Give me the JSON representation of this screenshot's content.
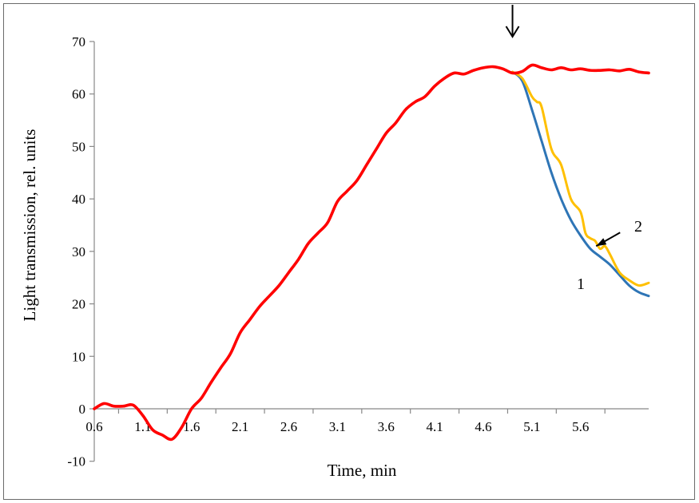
{
  "chart_data": {
    "type": "line",
    "title": "",
    "xlabel": "Time, min",
    "ylabel": "Light transmission, rel. units",
    "xlim": [
      0.6,
      6.3
    ],
    "ylim": [
      -10,
      70
    ],
    "x_tick_labels": [
      "0.6",
      "1.1",
      "1.6",
      "2.1",
      "2.6",
      "3.1",
      "3.6",
      "4.1",
      "4.6",
      "5.1",
      "5.6"
    ],
    "y_tick_labels": [
      "70",
      "60",
      "50",
      "40",
      "30",
      "20",
      "10",
      "0",
      "-10"
    ],
    "y_ticks": [
      70,
      60,
      50,
      40,
      30,
      20,
      10,
      0,
      -10
    ],
    "grid": false,
    "annotations": {
      "label_1": "1",
      "label_2": "2",
      "arrow_down_at_x": 4.9,
      "arrow_to_curve2_at": [
        5.76,
        31
      ]
    },
    "series": [
      {
        "color": "#ff0000",
        "x": [
          0.6,
          0.7,
          0.8,
          0.9,
          1.0,
          1.1,
          1.2,
          1.3,
          1.4,
          1.5,
          1.6,
          1.7,
          1.8,
          1.9,
          2.0,
          2.1,
          2.2,
          2.3,
          2.4,
          2.5,
          2.6,
          2.7,
          2.8,
          2.9,
          3.0,
          3.1,
          3.2,
          3.3,
          3.4,
          3.5,
          3.6,
          3.7,
          3.8,
          3.9,
          4.0,
          4.1,
          4.2,
          4.3,
          4.4,
          4.5,
          4.6,
          4.7,
          4.8,
          4.9,
          5.0,
          5.1,
          5.2,
          5.3,
          5.4,
          5.5,
          5.6,
          5.7,
          5.8,
          5.9,
          6.0,
          6.1,
          6.2,
          6.3
        ],
        "y": [
          0.0,
          1.0,
          0.5,
          0.5,
          0.7,
          -1.3,
          -4.0,
          -5.0,
          -5.8,
          -3.5,
          0.0,
          2.0,
          5.0,
          7.8,
          10.5,
          14.5,
          17.0,
          19.5,
          21.5,
          23.5,
          26.0,
          28.5,
          31.5,
          33.5,
          35.5,
          39.5,
          41.5,
          43.5,
          46.5,
          49.5,
          52.5,
          54.5,
          57.0,
          58.5,
          59.5,
          61.5,
          63.0,
          64.0,
          63.8,
          64.5,
          65.0,
          65.2,
          64.8,
          64.0,
          64.3,
          65.5,
          65.0,
          64.6,
          65.0,
          64.6,
          64.8,
          64.5,
          64.5,
          64.6,
          64.4,
          64.7,
          64.2,
          64.0
        ]
      },
      {
        "name": "1",
        "color": "#2e75b6",
        "x": [
          4.9,
          5.0,
          5.1,
          5.2,
          5.3,
          5.4,
          5.5,
          5.6,
          5.7,
          5.8,
          5.9,
          6.0,
          6.1,
          6.2,
          6.3
        ],
        "y": [
          64.2,
          62.5,
          57.0,
          51.0,
          45.0,
          40.0,
          36.0,
          33.0,
          30.5,
          29.0,
          27.5,
          25.5,
          23.5,
          22.2,
          21.5
        ]
      },
      {
        "name": "2",
        "color": "#ffc000",
        "x": [
          4.9,
          5.0,
          5.1,
          5.15,
          5.2,
          5.3,
          5.4,
          5.5,
          5.6,
          5.65,
          5.7,
          5.75,
          5.8,
          5.85,
          5.9,
          6.0,
          6.1,
          6.2,
          6.3
        ],
        "y": [
          64.2,
          63.0,
          59.5,
          58.5,
          57.5,
          49.5,
          46.5,
          40.0,
          37.5,
          33.5,
          32.5,
          32.0,
          30.5,
          31.0,
          29.5,
          26.0,
          24.5,
          23.5,
          24.0
        ]
      }
    ]
  }
}
